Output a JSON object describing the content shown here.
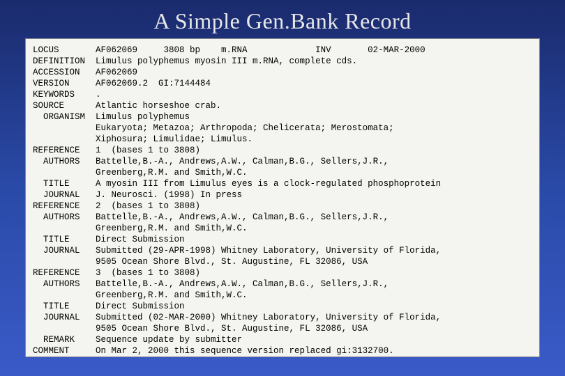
{
  "title": "A Simple Gen.Bank Record",
  "colors": {
    "bg_top": "#1a2a6c",
    "bg_mid": "#2a4aa8",
    "bg_bot": "#3a5ac8",
    "box_bg": "#f4f4f0",
    "box_border": "#888888",
    "title_color": "#e8e8e8",
    "text_color": "#000000"
  },
  "font": {
    "title_family": "Times New Roman",
    "title_size_pt": 24,
    "mono_family": "Courier New",
    "mono_size_pt": 9.5
  },
  "record": {
    "label_width": 12,
    "lines": [
      {
        "label": "LOCUS",
        "text": "AF062069     3808 bp    m.RNA             INV       02-MAR-2000"
      },
      {
        "label": "DEFINITION",
        "text": "Limulus polyphemus myosin III m.RNA, complete cds."
      },
      {
        "label": "ACCESSION",
        "text": "AF062069"
      },
      {
        "label": "VERSION",
        "text": "AF062069.2  GI:7144484"
      },
      {
        "label": "KEYWORDS",
        "text": "."
      },
      {
        "label": "SOURCE",
        "text": "Atlantic horseshoe crab."
      },
      {
        "label": "  ORGANISM",
        "text": "Limulus polyphemus"
      },
      {
        "label": "",
        "text": "Eukaryota; Metazoa; Arthropoda; Chelicerata; Merostomata;"
      },
      {
        "label": "",
        "text": "Xiphosura; Limulidae; Limulus."
      },
      {
        "label": "REFERENCE",
        "text": "1  (bases 1 to 3808)"
      },
      {
        "label": "  AUTHORS",
        "text": "Battelle,B.-A., Andrews,A.W., Calman,B.G., Sellers,J.R.,"
      },
      {
        "label": "",
        "text": "Greenberg,R.M. and Smith,W.C."
      },
      {
        "label": "  TITLE",
        "text": "A myosin III from Limulus eyes is a clock-regulated phosphoprotein"
      },
      {
        "label": "  JOURNAL",
        "text": "J. Neurosci. (1998) In press"
      },
      {
        "label": "REFERENCE",
        "text": "2  (bases 1 to 3808)"
      },
      {
        "label": "  AUTHORS",
        "text": "Battelle,B.-A., Andrews,A.W., Calman,B.G., Sellers,J.R.,"
      },
      {
        "label": "",
        "text": "Greenberg,R.M. and Smith,W.C."
      },
      {
        "label": "  TITLE",
        "text": "Direct Submission"
      },
      {
        "label": "  JOURNAL",
        "text": "Submitted (29-APR-1998) Whitney Laboratory, University of Florida,"
      },
      {
        "label": "",
        "text": "9505 Ocean Shore Blvd., St. Augustine, FL 32086, USA"
      },
      {
        "label": "REFERENCE",
        "text": "3  (bases 1 to 3808)"
      },
      {
        "label": "  AUTHORS",
        "text": "Battelle,B.-A., Andrews,A.W., Calman,B.G., Sellers,J.R.,"
      },
      {
        "label": "",
        "text": "Greenberg,R.M. and Smith,W.C."
      },
      {
        "label": "  TITLE",
        "text": "Direct Submission"
      },
      {
        "label": "  JOURNAL",
        "text": "Submitted (02-MAR-2000) Whitney Laboratory, University of Florida,"
      },
      {
        "label": "",
        "text": "9505 Ocean Shore Blvd., St. Augustine, FL 32086, USA"
      },
      {
        "label": "  REMARK",
        "text": "Sequence update by submitter"
      },
      {
        "label": "COMMENT",
        "text": "On Mar 2, 2000 this sequence version replaced gi:3132700."
      }
    ]
  }
}
